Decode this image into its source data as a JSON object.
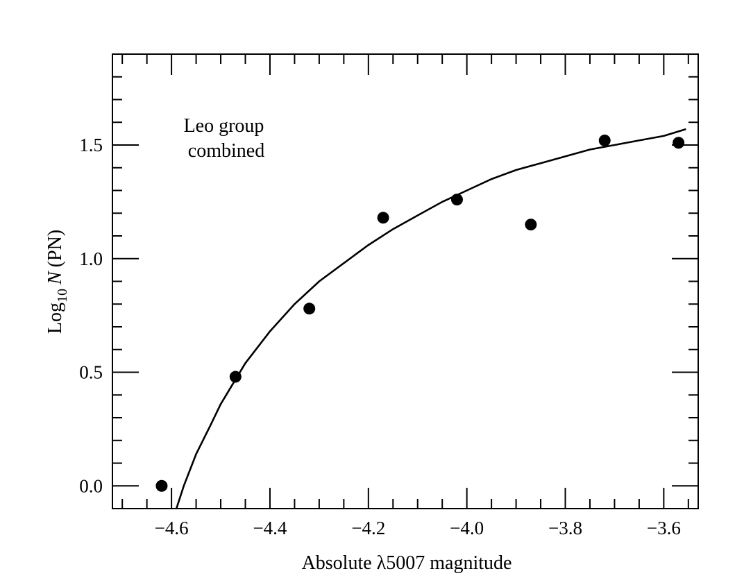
{
  "chart_data": {
    "type": "scatter",
    "title": "",
    "xlabel": "Absolute λ5007 magnitude",
    "ylabel": {
      "prefix": "Log",
      "subscript": "10",
      "variable": "N",
      "suffix": "(PN)"
    },
    "annotation": [
      "Leo group",
      "combined"
    ],
    "xlim": [
      -4.72,
      -3.53
    ],
    "ylim": [
      -0.1,
      1.9
    ],
    "x_ticks": [
      {
        "value": -4.6,
        "label": "−4.6"
      },
      {
        "value": -4.4,
        "label": "−4.4"
      },
      {
        "value": -4.2,
        "label": "−4.2"
      },
      {
        "value": -4.0,
        "label": "−4.0"
      },
      {
        "value": -3.8,
        "label": "−3.8"
      },
      {
        "value": -3.6,
        "label": "−3.6"
      }
    ],
    "y_ticks": [
      {
        "value": 0.0,
        "label": "0.0"
      },
      {
        "value": 0.5,
        "label": "0.5"
      },
      {
        "value": 1.0,
        "label": "1.0"
      },
      {
        "value": 1.5,
        "label": "1.5"
      }
    ],
    "x_minor_step": 0.05,
    "y_minor_step": 0.1,
    "grid": false,
    "series": [
      {
        "kind": "points",
        "x": [
          -4.62,
          -4.47,
          -4.32,
          -4.17,
          -4.02,
          -3.87,
          -3.72,
          -3.57
        ],
        "y": [
          0.0,
          0.48,
          0.78,
          1.18,
          1.26,
          1.15,
          1.52,
          1.51
        ]
      },
      {
        "kind": "line",
        "x": [
          -4.59,
          -4.575,
          -4.55,
          -4.52,
          -4.5,
          -4.45,
          -4.4,
          -4.35,
          -4.3,
          -4.25,
          -4.2,
          -4.15,
          -4.1,
          -4.05,
          -4.0,
          -3.95,
          -3.9,
          -3.85,
          -3.8,
          -3.75,
          -3.7,
          -3.65,
          -3.6,
          -3.555
        ],
        "y": [
          -0.1,
          0.0,
          0.14,
          0.27,
          0.36,
          0.54,
          0.68,
          0.8,
          0.9,
          0.98,
          1.06,
          1.13,
          1.19,
          1.25,
          1.3,
          1.35,
          1.39,
          1.42,
          1.45,
          1.48,
          1.5,
          1.52,
          1.54,
          1.57
        ]
      }
    ]
  }
}
